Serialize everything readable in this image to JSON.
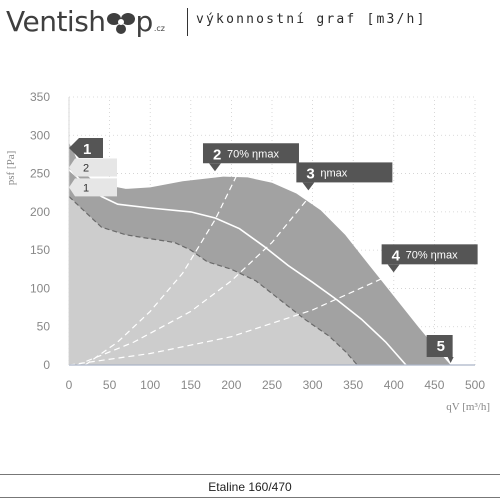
{
  "header": {
    "logo_text": "Ventish",
    "logo_text_end": "p",
    "logo_tld": ".cz",
    "subtitle": "výkonnostní graf [m3/h]"
  },
  "footer": {
    "model": "Etaline 160/470"
  },
  "colors": {
    "curve_fill": "#a2a2a2",
    "region_fill": "#cdcdcd",
    "marker_bg": "#555555",
    "marker_light": "#e6e6e6",
    "axis_text": "#888888"
  },
  "chart_data": {
    "type": "line",
    "xlabel": "qV [m³/h]",
    "ylabel": "psf [Pa]",
    "xlim": [
      0,
      500
    ],
    "ylim": [
      0,
      350
    ],
    "x_ticks": [
      0,
      50,
      100,
      150,
      200,
      250,
      300,
      350,
      400,
      450,
      500
    ],
    "y_ticks": [
      0,
      50,
      100,
      150,
      200,
      250,
      300,
      350
    ],
    "grid": true,
    "series": [
      {
        "name": "1",
        "style": "filled-dark",
        "points": [
          [
            0,
            290
          ],
          [
            5,
            280
          ],
          [
            15,
            255
          ],
          [
            30,
            240
          ],
          [
            50,
            234
          ],
          [
            70,
            230
          ],
          [
            100,
            232
          ],
          [
            140,
            240
          ],
          [
            190,
            246
          ],
          [
            220,
            245
          ],
          [
            250,
            238
          ],
          [
            280,
            224
          ],
          [
            310,
            202
          ],
          [
            340,
            170
          ],
          [
            370,
            130
          ],
          [
            400,
            90
          ],
          [
            430,
            50
          ],
          [
            455,
            18
          ],
          [
            470,
            0
          ]
        ]
      },
      {
        "name": "2",
        "style": "solid-white",
        "points": [
          [
            0,
            255
          ],
          [
            20,
            236
          ],
          [
            40,
            220
          ],
          [
            60,
            210
          ],
          [
            100,
            205
          ],
          [
            150,
            200
          ],
          [
            180,
            192
          ],
          [
            210,
            178
          ],
          [
            240,
            155
          ],
          [
            270,
            130
          ],
          [
            300,
            108
          ],
          [
            330,
            85
          ],
          [
            360,
            60
          ],
          [
            390,
            30
          ],
          [
            415,
            0
          ]
        ]
      },
      {
        "name": "1",
        "style": "dashed-dark",
        "points": [
          [
            0,
            220
          ],
          [
            20,
            200
          ],
          [
            40,
            180
          ],
          [
            70,
            170
          ],
          [
            100,
            165
          ],
          [
            130,
            160
          ],
          [
            150,
            150
          ],
          [
            170,
            135
          ],
          [
            200,
            125
          ],
          [
            230,
            110
          ],
          [
            260,
            85
          ],
          [
            290,
            60
          ],
          [
            320,
            38
          ],
          [
            340,
            18
          ],
          [
            355,
            0
          ]
        ]
      },
      {
        "name": "2 70% ηmax",
        "style": "dashed-white",
        "points": [
          [
            20,
            0
          ],
          [
            60,
            30
          ],
          [
            100,
            70
          ],
          [
            140,
            120
          ],
          [
            180,
            190
          ],
          [
            210,
            255
          ]
        ]
      },
      {
        "name": "3 ηmax",
        "style": "dashed-white",
        "points": [
          [
            10,
            0
          ],
          [
            80,
            30
          ],
          [
            150,
            70
          ],
          [
            200,
            110
          ],
          [
            250,
            160
          ],
          [
            300,
            225
          ]
        ]
      },
      {
        "name": "4 70% ηmax",
        "style": "dashed-white",
        "points": [
          [
            0,
            0
          ],
          [
            100,
            15
          ],
          [
            200,
            37
          ],
          [
            300,
            72
          ],
          [
            390,
            115
          ]
        ]
      }
    ],
    "annotations": [
      {
        "text": "1",
        "x": 0,
        "y": 290,
        "kind": "dark-tag"
      },
      {
        "text": "2",
        "x": 0,
        "y": 258,
        "kind": "light-tag"
      },
      {
        "text": "1",
        "x": 0,
        "y": 232,
        "kind": "light-tag"
      },
      {
        "text": "2",
        "x": 165,
        "y": 270,
        "label": "70% ηmax",
        "kind": "dark-tag"
      },
      {
        "text": "3",
        "x": 280,
        "y": 245,
        "label": "ηmax",
        "kind": "dark-tag"
      },
      {
        "text": "4",
        "x": 385,
        "y": 138,
        "label": "70% ηmax",
        "kind": "dark-tag"
      },
      {
        "text": "5",
        "x": 470,
        "y": 0,
        "kind": "dark-tag"
      }
    ]
  }
}
